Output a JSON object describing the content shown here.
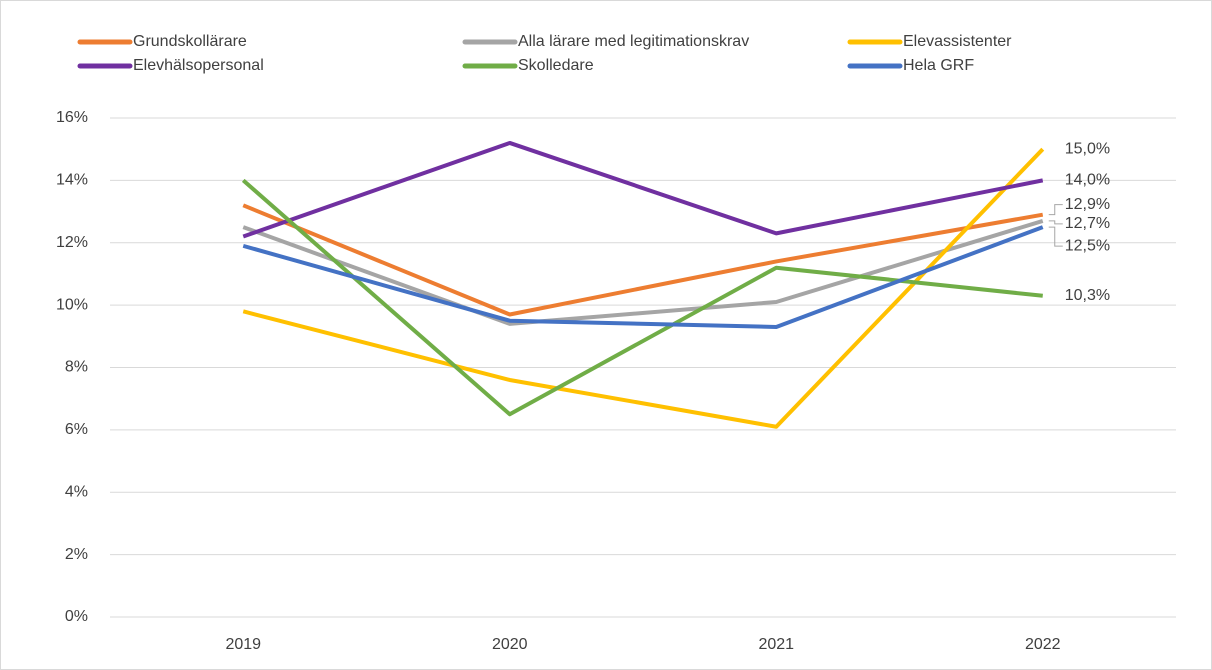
{
  "chart_data": {
    "type": "line",
    "categories": [
      "2019",
      "2020",
      "2021",
      "2022"
    ],
    "series": [
      {
        "name": "Grundskollärare",
        "color": "#ed7d31",
        "values": [
          13.2,
          9.7,
          11.4,
          12.9
        ],
        "value_labels": [
          null,
          null,
          null,
          "12,9%"
        ]
      },
      {
        "name": "Alla lärare med legitimationskrav",
        "color": "#a5a5a5",
        "values": [
          12.5,
          9.4,
          10.1,
          12.7
        ],
        "value_labels": [
          null,
          null,
          null,
          "12,7%"
        ]
      },
      {
        "name": "Elevassistenter",
        "color": "#ffc000",
        "values": [
          9.8,
          7.6,
          6.1,
          15.0
        ],
        "value_labels": [
          null,
          null,
          null,
          "15,0%"
        ]
      },
      {
        "name": "Elevhälsopersonal",
        "color": "#7030a0",
        "values": [
          12.2,
          15.2,
          12.3,
          14.0
        ],
        "value_labels": [
          null,
          null,
          null,
          "14,0%"
        ]
      },
      {
        "name": "Skolledare",
        "color": "#70ad47",
        "values": [
          14.0,
          6.5,
          11.2,
          10.3
        ],
        "value_labels": [
          null,
          null,
          null,
          "10,3%"
        ]
      },
      {
        "name": "Hela GRF",
        "color": "#4472c4",
        "values": [
          11.9,
          9.5,
          9.3,
          12.5
        ],
        "value_labels": [
          null,
          null,
          null,
          "12,5%"
        ]
      }
    ],
    "ylim": [
      0,
      16
    ],
    "yticks": [
      {
        "value": 0,
        "label": "0%"
      },
      {
        "value": 2,
        "label": "2%"
      },
      {
        "value": 4,
        "label": "4%"
      },
      {
        "value": 6,
        "label": "6%"
      },
      {
        "value": 8,
        "label": "8%"
      },
      {
        "value": 10,
        "label": "10%"
      },
      {
        "value": 12,
        "label": "12%"
      },
      {
        "value": 14,
        "label": "14%"
      },
      {
        "value": 16,
        "label": "16%"
      }
    ],
    "grid": true,
    "legend": "top"
  }
}
